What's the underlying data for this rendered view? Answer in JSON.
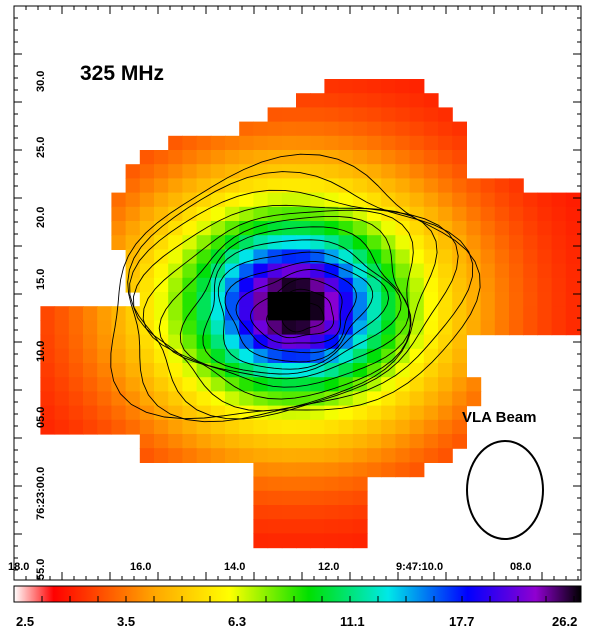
{
  "chart_data": {
    "type": "heatmap",
    "title": "325 MHz",
    "beam_label": "VLA Beam",
    "x_tick_labels": [
      "18.0",
      "16.0",
      "14.0",
      "12.0",
      "9:47:10.0",
      "08.0"
    ],
    "y_tick_labels": [
      "55.0",
      "76:23:00.0",
      "05.0",
      "10.0",
      "15.0",
      "20.0",
      "25.0",
      "30.0"
    ],
    "colorbar_ticks": [
      "2.5",
      "3.5",
      "6.3",
      "11.1",
      "17.7",
      "26.2"
    ],
    "colorbar_range": [
      2.5,
      26.2
    ],
    "colormap": [
      "#ffffff",
      "#ff0000",
      "#ffa800",
      "#ffff00",
      "#00e000",
      "#00e8e8",
      "#0000ff",
      "#9000d0",
      "#000000"
    ],
    "peak_value": 26.2,
    "contour_levels": 14,
    "contours": "black"
  }
}
